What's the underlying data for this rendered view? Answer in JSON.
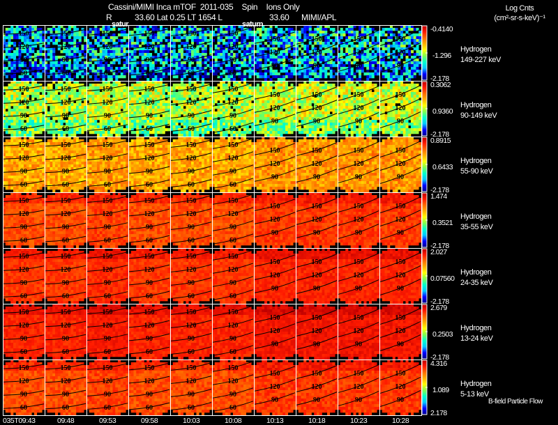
{
  "header": {
    "title": "Cassini/MIMI Inca mTOF  2011-035    Spin    Ions Only",
    "subtitle_r": "R",
    "subtitle_rest": "33.60 Lat 0.25 LT 1654 L",
    "subtitle_l_value": "33.60",
    "subtitle_source": "MIMI/APL",
    "units_line1": "Log Cnts",
    "units_line2": "(cm²-sr-s-keV)⁻¹"
  },
  "planet_labels": [
    "satur",
    "saturn"
  ],
  "legend_note": "B-field Particle Flow",
  "chart_data": {
    "type": "heatmap",
    "title": "Cassini/MIMI Inca mTOF 2011-035 Spin Ions Only",
    "time_labels": [
      "035T09:43",
      "09:48",
      "09:53",
      "09:58",
      "10:03",
      "10:08",
      "10:13",
      "10:18",
      "10:23",
      "10:28"
    ],
    "contour_levels": [
      "150",
      "120",
      "90",
      "60"
    ],
    "rows": [
      {
        "species": "Hydrogen",
        "energy": "149-227 keV",
        "cb_max": "-0.4140",
        "cb_mid": "-1.296",
        "cb_min": "-2.178",
        "level": 0.25,
        "spread": 0.22
      },
      {
        "species": "Hydrogen",
        "energy": "90-149 keV",
        "cb_max": "0.3062",
        "cb_mid": "0.9360",
        "cb_min": "-2.178",
        "level": 0.5,
        "spread": 0.14
      },
      {
        "species": "Hydrogen",
        "energy": "55-90 keV",
        "cb_max": "0.8915",
        "cb_mid": "0.6433",
        "cb_min": "-2.178",
        "level": 0.68,
        "spread": 0.09
      },
      {
        "species": "Hydrogen",
        "energy": "35-55 keV",
        "cb_max": "1.474",
        "cb_mid": "0.3521",
        "cb_min": "-2.178",
        "level": 0.82,
        "spread": 0.05
      },
      {
        "species": "Hydrogen",
        "energy": "24-35 keV",
        "cb_max": "2.027",
        "cb_mid": "0.07560",
        "cb_min": "-2.178",
        "level": 0.85,
        "spread": 0.04
      },
      {
        "species": "Hydrogen",
        "energy": "13-24 keV",
        "cb_max": "2.679",
        "cb_mid": "0.2503",
        "cb_min": "-2.178",
        "level": 0.88,
        "spread": 0.04
      },
      {
        "species": "Hydrogen",
        "energy": "5-13 keV",
        "cb_max": "4.316",
        "cb_mid": "1.089",
        "cb_min": "2.178",
        "level": 0.82,
        "spread": 0.05
      }
    ],
    "colorscale": [
      "#00008b",
      "#0000ff",
      "#00c8ff",
      "#00ffcc",
      "#7fff4f",
      "#ffff00",
      "#ffb000",
      "#ff6a00",
      "#ff1a00",
      "#c00000"
    ]
  }
}
